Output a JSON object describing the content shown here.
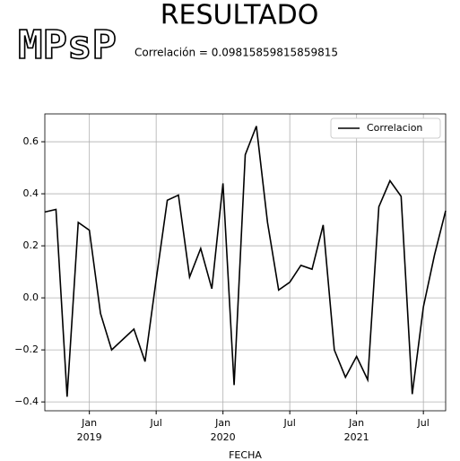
{
  "header": {
    "logo": "MPsP",
    "title": "RESULTADO",
    "subtitle": "Correlación = 0.09815859815859815"
  },
  "chart_data": {
    "type": "line",
    "x": [
      "2018-09",
      "2018-10",
      "2018-11",
      "2018-12",
      "2019-01",
      "2019-02",
      "2019-03",
      "2019-04",
      "2019-05",
      "2019-06",
      "2019-07",
      "2019-08",
      "2019-09",
      "2019-10",
      "2019-11",
      "2019-12",
      "2020-01",
      "2020-02",
      "2020-03",
      "2020-04",
      "2020-05",
      "2020-06",
      "2020-07",
      "2020-08",
      "2020-09",
      "2020-10",
      "2020-11",
      "2020-12",
      "2021-01",
      "2021-02",
      "2021-03",
      "2021-04",
      "2021-05",
      "2021-06",
      "2021-07",
      "2021-08",
      "2021-09"
    ],
    "series": [
      {
        "name": "Correlacion",
        "color": "#000000",
        "values": [
          0.33,
          0.34,
          -0.38,
          0.29,
          0.26,
          -0.06,
          -0.2,
          -0.16,
          -0.12,
          -0.245,
          0.07,
          0.375,
          0.395,
          0.08,
          0.19,
          0.035,
          0.44,
          -0.335,
          0.55,
          0.66,
          0.29,
          0.03,
          0.06,
          0.125,
          0.11,
          0.28,
          -0.2,
          -0.305,
          -0.225,
          -0.315,
          0.35,
          0.45,
          0.39,
          -0.37,
          -0.035,
          0.165,
          0.335
        ]
      }
    ],
    "xlabel": "FECHA",
    "xlim": [
      "2018-09",
      "2021-09"
    ],
    "xticks": [
      {
        "value": "2019-01",
        "label": "Jan",
        "year": "2019"
      },
      {
        "value": "2019-07",
        "label": "Jul"
      },
      {
        "value": "2020-01",
        "label": "Jan",
        "year": "2020"
      },
      {
        "value": "2020-07",
        "label": "Jul"
      },
      {
        "value": "2021-01",
        "label": "Jan",
        "year": "2021"
      },
      {
        "value": "2021-07",
        "label": "Jul"
      }
    ],
    "ylim": [
      -0.434,
      0.707
    ],
    "yticks": [
      {
        "value": 0.6,
        "label": "0.6"
      },
      {
        "value": 0.4,
        "label": "0.4"
      },
      {
        "value": 0.2,
        "label": "0.2"
      },
      {
        "value": 0,
        "label": "0.0"
      },
      {
        "value": -0.2,
        "label": "−0.2"
      },
      {
        "value": -0.4,
        "label": "−0.4"
      }
    ],
    "grid": true,
    "legend": "upper right"
  }
}
